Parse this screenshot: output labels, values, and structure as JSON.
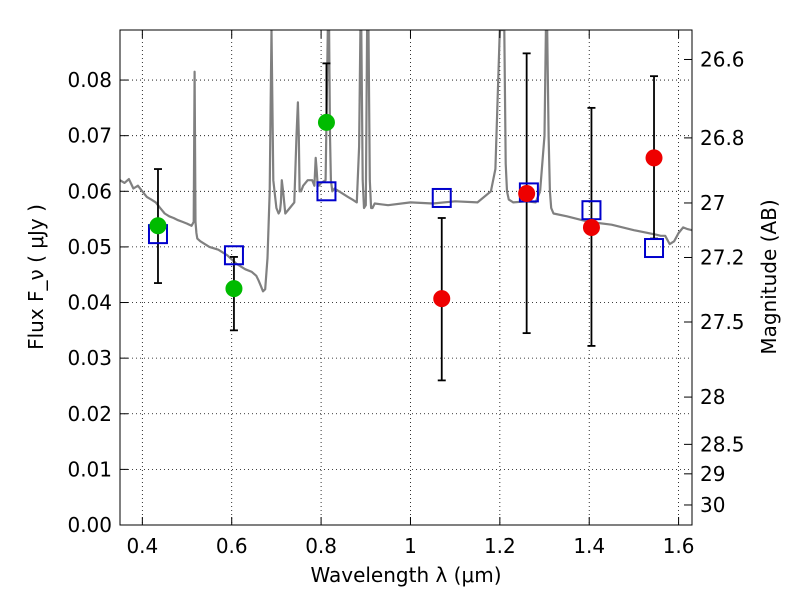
{
  "chart_data": {
    "type": "scatter",
    "xlabel": "Wavelength  λ (μm)",
    "ylabel": "Flux  F_ν  ( μJy )",
    "ylabel_right": "Magnitude (AB)",
    "xlim": [
      0.35,
      1.63
    ],
    "ylim": [
      0.0,
      0.089
    ],
    "grid": true,
    "x_ticks": [
      0.4,
      0.6,
      0.8,
      1.0,
      1.2,
      1.4,
      1.6
    ],
    "x_tick_labels": [
      "0.4",
      "0.6",
      "0.8",
      "1",
      "1.2",
      "1.4",
      "1.6"
    ],
    "y_ticks": [
      0.0,
      0.01,
      0.02,
      0.03,
      0.04,
      0.05,
      0.06,
      0.07,
      0.08
    ],
    "y_tick_labels": [
      "0.00",
      "0.01",
      "0.02",
      "0.03",
      "0.04",
      "0.05",
      "0.06",
      "0.07",
      "0.08"
    ],
    "right_ticks": [
      {
        "label": "26.6",
        "flux": 0.0837
      },
      {
        "label": "26.8",
        "flux": 0.0696
      },
      {
        "label": "27",
        "flux": 0.0579
      },
      {
        "label": "27.2",
        "flux": 0.0481
      },
      {
        "label": "27.5",
        "flux": 0.0365
      },
      {
        "label": "28",
        "flux": 0.023
      },
      {
        "label": "28.5",
        "flux": 0.0145
      },
      {
        "label": "29",
        "flux": 0.0092
      },
      {
        "label": "30",
        "flux": 0.0036
      }
    ],
    "series": [
      {
        "style": "model-spectrum",
        "color": "#808080",
        "x": [
          0.35,
          0.36,
          0.37,
          0.38,
          0.39,
          0.4,
          0.41,
          0.42,
          0.43,
          0.44,
          0.45,
          0.46,
          0.47,
          0.48,
          0.49,
          0.5,
          0.51,
          0.515,
          0.517,
          0.519,
          0.521,
          0.523,
          0.53,
          0.55,
          0.57,
          0.59,
          0.61,
          0.63,
          0.645,
          0.655,
          0.66,
          0.665,
          0.67,
          0.675,
          0.68,
          0.685,
          0.687,
          0.689,
          0.693,
          0.7,
          0.705,
          0.708,
          0.71,
          0.712,
          0.715,
          0.72,
          0.73,
          0.74,
          0.745,
          0.748,
          0.75,
          0.752,
          0.755,
          0.76,
          0.77,
          0.78,
          0.785,
          0.788,
          0.79,
          0.792,
          0.795,
          0.8,
          0.81,
          0.815,
          0.818,
          0.82,
          0.822,
          0.825,
          0.83,
          0.84,
          0.85,
          0.86,
          0.87,
          0.88,
          0.885,
          0.888,
          0.89,
          0.893,
          0.896,
          0.9,
          0.903,
          0.906,
          0.909,
          0.912,
          0.915,
          0.92,
          0.95,
          1.0,
          1.05,
          1.1,
          1.15,
          1.18,
          1.19,
          1.2,
          1.205,
          1.21,
          1.213,
          1.216,
          1.22,
          1.23,
          1.26,
          1.28,
          1.29,
          1.3,
          1.303,
          1.306,
          1.309,
          1.312,
          1.315,
          1.32,
          1.35,
          1.4,
          1.45,
          1.5,
          1.55,
          1.56,
          1.57,
          1.58,
          1.59,
          1.6,
          1.61,
          1.62,
          1.63
        ],
        "y": [
          0.062,
          0.0615,
          0.0622,
          0.0605,
          0.061,
          0.06,
          0.059,
          0.0585,
          0.058,
          0.057,
          0.056,
          0.0555,
          0.0552,
          0.0548,
          0.0545,
          0.0542,
          0.0538,
          0.0545,
          0.0815,
          0.0545,
          0.0525,
          0.0515,
          0.051,
          0.05,
          0.0495,
          0.0485,
          0.047,
          0.046,
          0.0455,
          0.0448,
          0.044,
          0.043,
          0.042,
          0.0424,
          0.048,
          0.06,
          0.075,
          0.089,
          0.062,
          0.057,
          0.056,
          0.0565,
          0.058,
          0.062,
          0.06,
          0.056,
          0.057,
          0.058,
          0.07,
          0.076,
          0.07,
          0.06,
          0.06,
          0.061,
          0.062,
          0.062,
          0.061,
          0.066,
          0.064,
          0.0615,
          0.061,
          0.0615,
          0.062,
          0.089,
          0.089,
          0.07,
          0.062,
          0.06,
          0.0605,
          0.06,
          0.0595,
          0.059,
          0.0585,
          0.058,
          0.068,
          0.089,
          0.089,
          0.062,
          0.057,
          0.0575,
          0.089,
          0.089,
          0.062,
          0.057,
          0.057,
          0.0578,
          0.0575,
          0.058,
          0.0578,
          0.0582,
          0.058,
          0.06,
          0.064,
          0.089,
          0.089,
          0.089,
          0.065,
          0.06,
          0.0585,
          0.058,
          0.0582,
          0.058,
          0.06,
          0.07,
          0.089,
          0.089,
          0.07,
          0.06,
          0.057,
          0.056,
          0.0555,
          0.0545,
          0.054,
          0.053,
          0.0522,
          0.052,
          0.052,
          0.0505,
          0.051,
          0.0525,
          0.0535,
          0.0532,
          0.053
        ]
      },
      {
        "style": "model-photometry",
        "marker": "open-square",
        "color": "#0000cc",
        "x": [
          0.435,
          0.605,
          0.812,
          1.07,
          1.265,
          1.405,
          1.545
        ],
        "y": [
          0.0523,
          0.0485,
          0.06,
          0.0588,
          0.0598,
          0.0566,
          0.0498
        ]
      },
      {
        "style": "observed-photometry",
        "marker": "filled-circle",
        "color": "#00bb00",
        "x": [
          0.435,
          0.605,
          0.812
        ],
        "y": [
          0.0538,
          0.0425,
          0.0724
        ],
        "yerr_low": [
          0.0435,
          0.035,
          0.0724
        ],
        "yerr_high": [
          0.064,
          0.0482,
          0.083
        ]
      },
      {
        "style": "observed-photometry",
        "marker": "filled-circle",
        "color": "#ee0000",
        "x": [
          1.07,
          1.26,
          1.405,
          1.545
        ],
        "y": [
          0.0407,
          0.0596,
          0.0535,
          0.066
        ],
        "yerr_low": [
          0.026,
          0.0345,
          0.0322,
          0.0515
        ],
        "yerr_high": [
          0.0552,
          0.0848,
          0.075,
          0.0807
        ]
      }
    ]
  }
}
